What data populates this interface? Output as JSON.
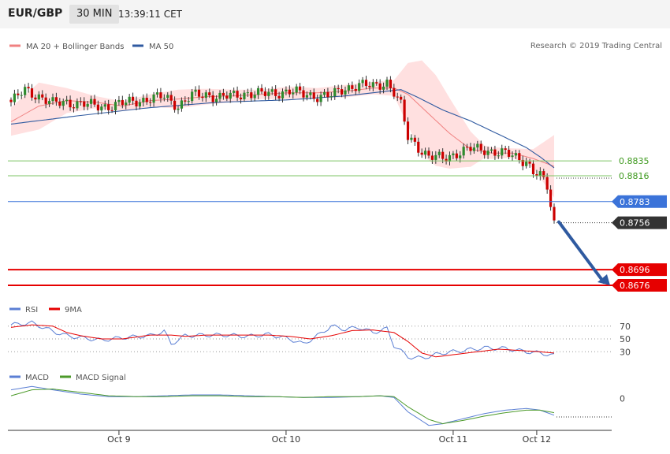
{
  "header": {
    "symbol": "EUR/GBP",
    "timeframe": "30 MIN",
    "clock": "13:39:11 CET"
  },
  "source": "Research © 2019 Trading Central",
  "colors": {
    "up": "#2e8b2e",
    "down": "#cc0000",
    "ma20": "#f08080",
    "band": "#ffe0e0",
    "ma50": "#2f5aa0",
    "resistance": "#7cc464",
    "pivot": "#3b73d9",
    "support": "#e60000",
    "last": "#333333",
    "arrow": "#2f5aa0"
  },
  "chart_data": [
    {
      "type": "candlestick",
      "title": "",
      "legend": [
        {
          "name": "MA 20 + Bollinger Bands",
          "color": "#f08080"
        },
        {
          "name": "MA 50",
          "color": "#2f5aa0"
        }
      ],
      "x_ticks": [
        "Oct 9",
        "Oct 10",
        "Oct 11",
        "Oct 12"
      ],
      "ylim": [
        0.867,
        0.897
      ],
      "levels": [
        {
          "label": "0.8835",
          "value": 0.8835,
          "kind": "resistance"
        },
        {
          "label": "0.8816",
          "value": 0.8816,
          "kind": "resistance"
        },
        {
          "label": "0.8783",
          "value": 0.8783,
          "kind": "pivot"
        },
        {
          "label": "0.8756",
          "value": 0.8756,
          "kind": "last"
        },
        {
          "label": "0.8696",
          "value": 0.8696,
          "kind": "support"
        },
        {
          "label": "0.8676",
          "value": 0.8676,
          "kind": "support"
        }
      ],
      "close_anchors": [
        [
          0,
          0.891
        ],
        [
          4,
          0.8925
        ],
        [
          8,
          0.8918
        ],
        [
          12,
          0.8908
        ],
        [
          16,
          0.891
        ],
        [
          20,
          0.8908
        ],
        [
          24,
          0.8905
        ],
        [
          28,
          0.8905
        ],
        [
          32,
          0.8908
        ],
        [
          36,
          0.8912
        ],
        [
          40,
          0.8914
        ],
        [
          44,
          0.8917
        ],
        [
          46,
          0.8912
        ],
        [
          48,
          0.8905
        ],
        [
          52,
          0.8918
        ],
        [
          56,
          0.892
        ],
        [
          60,
          0.8916
        ],
        [
          64,
          0.8918
        ],
        [
          68,
          0.8922
        ],
        [
          72,
          0.892
        ],
        [
          76,
          0.8922
        ],
        [
          80,
          0.8924
        ],
        [
          84,
          0.892
        ],
        [
          88,
          0.8918
        ],
        [
          92,
          0.8918
        ],
        [
          96,
          0.8928
        ],
        [
          100,
          0.8932
        ],
        [
          104,
          0.893
        ],
        [
          108,
          0.8936
        ],
        [
          110,
          0.8922
        ],
        [
          112,
          0.8905
        ],
        [
          114,
          0.8865
        ],
        [
          116,
          0.8858
        ],
        [
          118,
          0.8848
        ],
        [
          120,
          0.884
        ],
        [
          124,
          0.8838
        ],
        [
          128,
          0.8845
        ],
        [
          132,
          0.885
        ],
        [
          136,
          0.885
        ],
        [
          140,
          0.8845
        ],
        [
          144,
          0.8842
        ],
        [
          148,
          0.8835
        ],
        [
          150,
          0.882
        ],
        [
          152,
          0.8815
        ],
        [
          154,
          0.8802
        ],
        [
          156,
          0.8756
        ]
      ],
      "ma20_anchors": [
        [
          0,
          0.8885
        ],
        [
          8,
          0.8905
        ],
        [
          16,
          0.8912
        ],
        [
          24,
          0.891
        ],
        [
          32,
          0.8905
        ],
        [
          40,
          0.8912
        ],
        [
          48,
          0.8914
        ],
        [
          56,
          0.8917
        ],
        [
          64,
          0.8918
        ],
        [
          72,
          0.892
        ],
        [
          80,
          0.8922
        ],
        [
          88,
          0.8922
        ],
        [
          96,
          0.8924
        ],
        [
          104,
          0.8928
        ],
        [
          110,
          0.8928
        ],
        [
          114,
          0.892
        ],
        [
          120,
          0.8895
        ],
        [
          126,
          0.887
        ],
        [
          132,
          0.885
        ],
        [
          138,
          0.8845
        ],
        [
          144,
          0.8845
        ],
        [
          150,
          0.8838
        ],
        [
          156,
          0.8828
        ]
      ],
      "band_width_anchors": [
        [
          0,
          0.0018
        ],
        [
          8,
          0.003
        ],
        [
          16,
          0.0016
        ],
        [
          24,
          0.0008
        ],
        [
          32,
          0.0006
        ],
        [
          40,
          0.0008
        ],
        [
          48,
          0.0012
        ],
        [
          56,
          0.001
        ],
        [
          64,
          0.0008
        ],
        [
          72,
          0.0006
        ],
        [
          80,
          0.0008
        ],
        [
          88,
          0.0006
        ],
        [
          96,
          0.0008
        ],
        [
          104,
          0.0008
        ],
        [
          110,
          0.001
        ],
        [
          114,
          0.004
        ],
        [
          118,
          0.006
        ],
        [
          122,
          0.0058
        ],
        [
          126,
          0.0045
        ],
        [
          130,
          0.003
        ],
        [
          136,
          0.0008
        ],
        [
          144,
          0.0006
        ],
        [
          150,
          0.0012
        ],
        [
          156,
          0.004
        ]
      ],
      "ma50_anchors": [
        [
          0,
          0.8882
        ],
        [
          20,
          0.8893
        ],
        [
          40,
          0.8903
        ],
        [
          60,
          0.891
        ],
        [
          80,
          0.8913
        ],
        [
          96,
          0.8918
        ],
        [
          108,
          0.8924
        ],
        [
          112,
          0.8926
        ],
        [
          116,
          0.8918
        ],
        [
          124,
          0.89
        ],
        [
          132,
          0.8886
        ],
        [
          140,
          0.8869
        ],
        [
          148,
          0.8852
        ],
        [
          152,
          0.884
        ],
        [
          156,
          0.8826
        ]
      ]
    },
    {
      "type": "line",
      "legend": [
        {
          "name": "RSI",
          "color": "#5b7fd4"
        },
        {
          "name": "9MA",
          "color": "#e60000"
        }
      ],
      "ylim": [
        18,
        82
      ],
      "y_ticks": [
        70,
        50,
        30
      ],
      "series": [
        {
          "name": "RSI",
          "color": "#5b7fd4",
          "anchors": [
            [
              0,
              72
            ],
            [
              6,
              75
            ],
            [
              12,
              62
            ],
            [
              16,
              55
            ],
            [
              20,
              52
            ],
            [
              26,
              48
            ],
            [
              32,
              52
            ],
            [
              40,
              55
            ],
            [
              44,
              62
            ],
            [
              46,
              42
            ],
            [
              50,
              55
            ],
            [
              56,
              56
            ],
            [
              62,
              56
            ],
            [
              68,
              54
            ],
            [
              74,
              57
            ],
            [
              80,
              50
            ],
            [
              84,
              42
            ],
            [
              88,
              55
            ],
            [
              92,
              70
            ],
            [
              96,
              65
            ],
            [
              100,
              68
            ],
            [
              104,
              60
            ],
            [
              108,
              66
            ],
            [
              110,
              40
            ],
            [
              114,
              22
            ],
            [
              118,
              20
            ],
            [
              124,
              28
            ],
            [
              130,
              32
            ],
            [
              136,
              36
            ],
            [
              142,
              35
            ],
            [
              148,
              30
            ],
            [
              152,
              28
            ],
            [
              156,
              24
            ]
          ]
        },
        {
          "name": "9MA",
          "color": "#e60000",
          "anchors": [
            [
              0,
              68
            ],
            [
              6,
              72
            ],
            [
              12,
              70
            ],
            [
              16,
              60
            ],
            [
              20,
              55
            ],
            [
              26,
              50
            ],
            [
              32,
              50
            ],
            [
              40,
              56
            ],
            [
              46,
              56
            ],
            [
              50,
              54
            ],
            [
              56,
              56
            ],
            [
              62,
              56
            ],
            [
              68,
              56
            ],
            [
              74,
              56
            ],
            [
              80,
              54
            ],
            [
              86,
              50
            ],
            [
              92,
              55
            ],
            [
              98,
              63
            ],
            [
              104,
              64
            ],
            [
              110,
              60
            ],
            [
              114,
              46
            ],
            [
              118,
              28
            ],
            [
              122,
              22
            ],
            [
              128,
              26
            ],
            [
              134,
              30
            ],
            [
              140,
              34
            ],
            [
              146,
              32
            ],
            [
              152,
              30
            ],
            [
              156,
              28
            ]
          ]
        }
      ]
    },
    {
      "type": "line",
      "legend": [
        {
          "name": "MACD",
          "color": "#5b7fd4"
        },
        {
          "name": "MACD Signal",
          "color": "#4c9a2a"
        }
      ],
      "ylim": [
        -0.0036,
        0.0018
      ],
      "y_ticks": [
        0
      ],
      "series": [
        {
          "name": "MACD",
          "color": "#5b7fd4",
          "anchors": [
            [
              0,
              0.001
            ],
            [
              6,
              0.0014
            ],
            [
              12,
              0.001
            ],
            [
              20,
              0.0005
            ],
            [
              28,
              0.0002
            ],
            [
              36,
              0.0002
            ],
            [
              44,
              0.0003
            ],
            [
              52,
              0.0004
            ],
            [
              60,
              0.0004
            ],
            [
              68,
              0.0003
            ],
            [
              76,
              0.0002
            ],
            [
              84,
              0.0001
            ],
            [
              92,
              0.0001
            ],
            [
              100,
              0.0002
            ],
            [
              106,
              0.0003
            ],
            [
              110,
              0.0001
            ],
            [
              114,
              -0.0016
            ],
            [
              120,
              -0.0032
            ],
            [
              124,
              -0.003
            ],
            [
              130,
              -0.0024
            ],
            [
              136,
              -0.0018
            ],
            [
              142,
              -0.0014
            ],
            [
              148,
              -0.0012
            ],
            [
              152,
              -0.0014
            ],
            [
              156,
              -0.002
            ]
          ]
        },
        {
          "name": "MACD Signal",
          "color": "#4c9a2a",
          "anchors": [
            [
              0,
              0.0003
            ],
            [
              6,
              0.001
            ],
            [
              12,
              0.0011
            ],
            [
              20,
              0.0007
            ],
            [
              28,
              0.0003
            ],
            [
              36,
              0.0002
            ],
            [
              44,
              0.0002
            ],
            [
              52,
              0.0003
            ],
            [
              60,
              0.0003
            ],
            [
              68,
              0.0002
            ],
            [
              76,
              0.0002
            ],
            [
              84,
              0.0001
            ],
            [
              92,
              0.0002
            ],
            [
              100,
              0.0002
            ],
            [
              106,
              0.0003
            ],
            [
              110,
              0.0002
            ],
            [
              114,
              -0.001
            ],
            [
              120,
              -0.0025
            ],
            [
              124,
              -0.003
            ],
            [
              130,
              -0.0026
            ],
            [
              136,
              -0.0021
            ],
            [
              142,
              -0.0017
            ],
            [
              148,
              -0.0014
            ],
            [
              152,
              -0.0014
            ],
            [
              156,
              -0.0017
            ]
          ]
        }
      ]
    }
  ]
}
